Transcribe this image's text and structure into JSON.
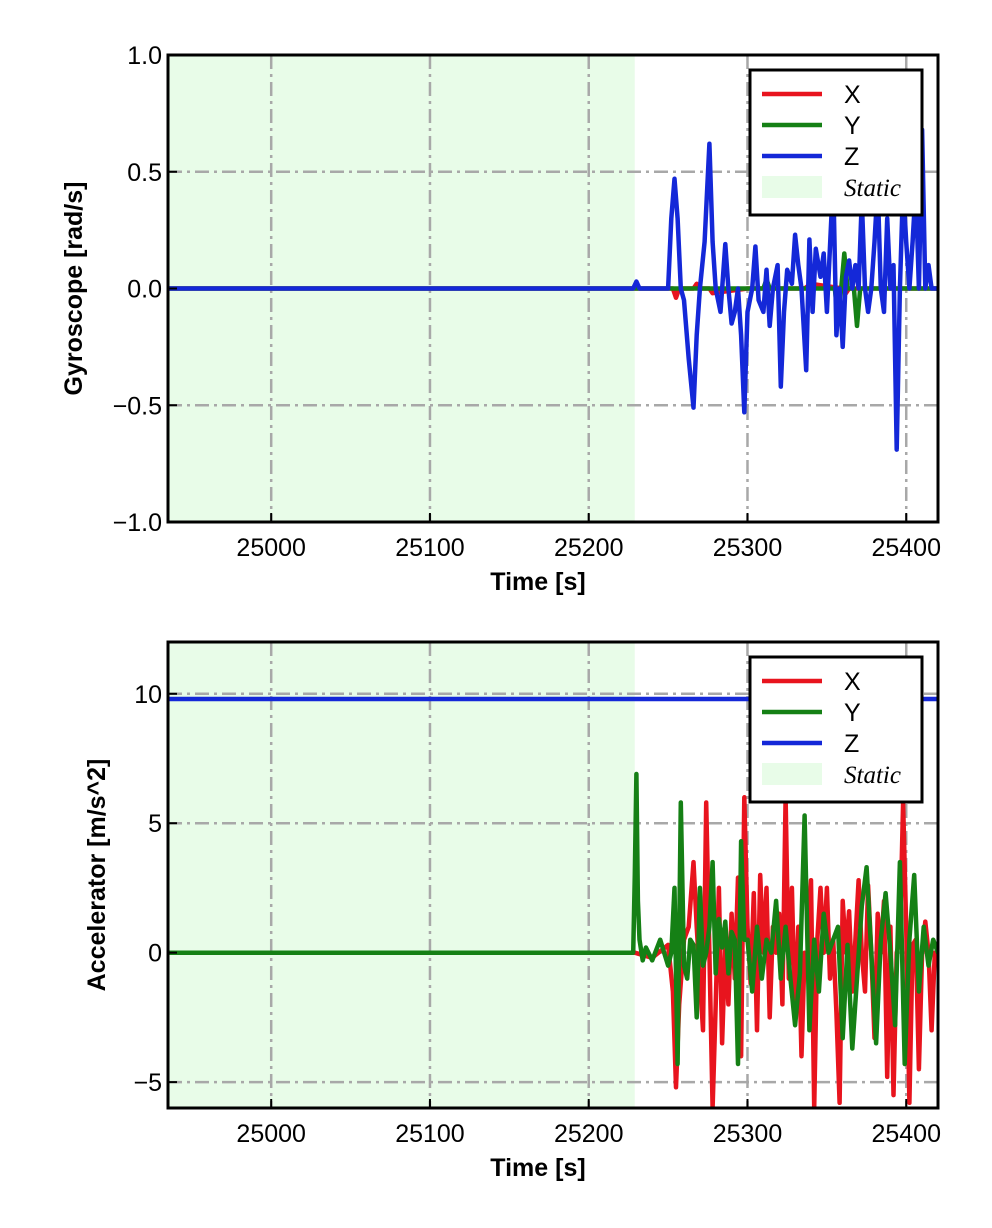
{
  "chart_data": [
    {
      "type": "line",
      "xlabel": "Time [s]",
      "ylabel": "Gyroscope [rad/s]",
      "xlim": [
        24935,
        25420
      ],
      "ylim": [
        -1.0,
        1.0
      ],
      "xticks": [
        25000,
        25100,
        25200,
        25300,
        25400
      ],
      "xtick_labels": [
        "25000",
        "25100",
        "25200",
        "25300",
        "25400"
      ],
      "yticks": [
        1.0,
        0.5,
        0.0,
        -0.5,
        -1.0
      ],
      "ytick_labels": [
        "1.0",
        "0.5",
        "0.0",
        "−0.5",
        "−1.0"
      ],
      "grid": true,
      "legend_position": "top-right",
      "static_region": {
        "label": "Static",
        "x_start": 24935,
        "x_end": 25229,
        "color": "#e8fce8"
      },
      "series": [
        {
          "name": "X",
          "color": "#e8141e",
          "x": [
            24935,
            25229,
            25253,
            25255,
            25257,
            25266,
            25268,
            25270,
            25276,
            25278,
            25300,
            25320,
            25336,
            25340,
            25360,
            25362,
            25364,
            25380,
            25420
          ],
          "y": [
            0,
            0,
            0,
            -0.04,
            0,
            0,
            0.02,
            0,
            0,
            -0.02,
            0,
            0,
            0,
            0.02,
            0,
            -0.02,
            0,
            0,
            0
          ]
        },
        {
          "name": "Y",
          "color": "#158015",
          "x": [
            24935,
            25229,
            25300,
            25310,
            25312,
            25314,
            25355,
            25357,
            25359,
            25361,
            25363,
            25367,
            25369,
            25371,
            25420
          ],
          "y": [
            0,
            0,
            0,
            0,
            0.04,
            0,
            0,
            -0.13,
            0,
            0.15,
            0,
            0,
            -0.16,
            0,
            0
          ]
        },
        {
          "name": "Z",
          "color": "#1428d8",
          "x": [
            24935,
            25228,
            25230,
            25232,
            25250,
            25252,
            25254,
            25256,
            25258,
            25260,
            25263,
            25266,
            25268,
            25270,
            25273,
            25276,
            25278,
            25280,
            25283,
            25286,
            25288,
            25290,
            25292,
            25294,
            25296,
            25298,
            25300,
            25303,
            25305,
            25307,
            25310,
            25312,
            25314,
            25316,
            25319,
            25321,
            25323,
            25325,
            25328,
            25330,
            25332,
            25334,
            25337,
            25339,
            25341,
            25343,
            25346,
            25348,
            25350,
            25352,
            25354,
            25356,
            25358,
            25360,
            25362,
            25364,
            25366,
            25368,
            25370,
            25372,
            25374,
            25376,
            25378,
            25380,
            25382,
            25384,
            25386,
            25388,
            25390,
            25392,
            25394,
            25396,
            25398,
            25400,
            25402,
            25404,
            25406,
            25408,
            25410,
            25412,
            25414,
            25416,
            25420
          ],
          "y": [
            0,
            0,
            0.03,
            0,
            0,
            0.3,
            0.47,
            0.3,
            0,
            -0.05,
            -0.3,
            -0.51,
            -0.2,
            0,
            0.2,
            0.62,
            0.2,
            0,
            -0.1,
            0.19,
            0,
            -0.15,
            -0.1,
            0,
            -0.2,
            -0.53,
            -0.1,
            0,
            0.18,
            -0.05,
            -0.1,
            0.08,
            -0.16,
            0,
            0.1,
            -0.42,
            -0.1,
            0.08,
            0.02,
            0.23,
            0.1,
            0,
            -0.35,
            0.21,
            -0.1,
            0.17,
            0.05,
            0.15,
            -0.1,
            0.18,
            0.47,
            -0.2,
            0,
            -0.25,
            0.05,
            0.12,
            0,
            0.1,
            0,
            0.38,
            0,
            -0.1,
            0,
            0.2,
            0.44,
            0,
            -0.1,
            0.3,
            0,
            0.1,
            -0.69,
            0,
            0.44,
            0.2,
            0,
            0.2,
            0.44,
            0,
            0.68,
            0,
            0.1,
            0,
            0
          ]
        }
      ]
    },
    {
      "type": "line",
      "xlabel": "Time [s]",
      "ylabel": "Accelerator [m/s^2]",
      "xlim": [
        24935,
        25420
      ],
      "ylim": [
        -6.0,
        12.0
      ],
      "xticks": [
        25000,
        25100,
        25200,
        25300,
        25400
      ],
      "xtick_labels": [
        "25000",
        "25100",
        "25200",
        "25300",
        "25400"
      ],
      "yticks": [
        10,
        5,
        0,
        -5
      ],
      "ytick_labels": [
        "10",
        "5",
        "0",
        "−5"
      ],
      "grid": true,
      "legend_position": "top-right",
      "static_region": {
        "label": "Static",
        "x_start": 24935,
        "x_end": 25229,
        "color": "#e8fce8"
      },
      "series": [
        {
          "name": "X",
          "color": "#e8141e",
          "x": [
            24935,
            25229,
            25240,
            25250,
            25253,
            25255,
            25257,
            25260,
            25263,
            25266,
            25268,
            25270,
            25272,
            25274,
            25276,
            25278,
            25280,
            25282,
            25284,
            25286,
            25288,
            25290,
            25292,
            25294,
            25296,
            25298,
            25300,
            25302,
            25304,
            25306,
            25308,
            25310,
            25312,
            25314,
            25316,
            25318,
            25320,
            25322,
            25324,
            25326,
            25328,
            25330,
            25332,
            25334,
            25336,
            25338,
            25340,
            25342,
            25344,
            25346,
            25348,
            25350,
            25352,
            25354,
            25356,
            25358,
            25360,
            25362,
            25364,
            25366,
            25368,
            25370,
            25372,
            25374,
            25376,
            25378,
            25380,
            25382,
            25384,
            25386,
            25388,
            25390,
            25392,
            25394,
            25396,
            25398,
            25400,
            25402,
            25404,
            25406,
            25408,
            25410,
            25412,
            25414,
            25416,
            25418,
            25420
          ],
          "y": [
            0,
            0,
            -0.2,
            0.3,
            -1.5,
            -5.2,
            -2,
            0.5,
            1,
            3.5,
            1,
            -1,
            -3,
            5.8,
            0,
            -6,
            -2,
            2.5,
            -3.5,
            0.3,
            -2,
            1.5,
            -1,
            2.9,
            -4,
            6,
            1,
            -1.2,
            2.3,
            -3,
            3,
            0,
            2.5,
            -2.5,
            1,
            0,
            1.5,
            -2,
            6,
            -1,
            2.5,
            -2.5,
            1,
            -4,
            0,
            -0.5,
            2.8,
            -6,
            0.5,
            2.5,
            0,
            2.5,
            -1,
            0.5,
            -2.3,
            -5.8,
            2,
            0,
            1.6,
            -1.5,
            0.5,
            2.8,
            0,
            -1.5,
            2.6,
            0,
            -3.3,
            1.5,
            0,
            2,
            -4.8,
            1,
            -5.5,
            0,
            0.5,
            5.8,
            1,
            -5.8,
            0.3,
            0.5,
            -4.5,
            0,
            1.2,
            0,
            -3,
            0,
            0
          ]
        },
        {
          "name": "Y",
          "color": "#158015",
          "x": [
            24935,
            25228,
            25229,
            25230,
            25231,
            25232,
            25234,
            25236,
            25240,
            25245,
            25250,
            25252,
            25254,
            25256,
            25258,
            25260,
            25262,
            25264,
            25266,
            25268,
            25270,
            25272,
            25274,
            25276,
            25278,
            25280,
            25282,
            25284,
            25286,
            25288,
            25290,
            25292,
            25294,
            25296,
            25298,
            25300,
            25303,
            25306,
            25309,
            25312,
            25315,
            25318,
            25321,
            25324,
            25327,
            25330,
            25333,
            25336,
            25339,
            25342,
            25345,
            25348,
            25351,
            25354,
            25357,
            25360,
            25363,
            25366,
            25369,
            25372,
            25375,
            25378,
            25381,
            25384,
            25387,
            25390,
            25393,
            25396,
            25399,
            25402,
            25405,
            25408,
            25411,
            25414,
            25417,
            25420
          ],
          "y": [
            0,
            0,
            3,
            6.9,
            2,
            0.5,
            -0.3,
            0.2,
            -0.3,
            0.5,
            -0.5,
            0,
            2.5,
            -4.3,
            5.8,
            -0.5,
            -1,
            0.5,
            0.3,
            -2.5,
            2.5,
            -0.5,
            0,
            1,
            3.5,
            -0.8,
            1.3,
            0.2,
            1.2,
            -0.8,
            0.8,
            0.5,
            -4.3,
            4.3,
            0.5,
            0.5,
            -1.5,
            1,
            -1,
            0.5,
            0,
            2,
            -1,
            1,
            -1,
            -2.8,
            -0.8,
            5.3,
            -3,
            0.5,
            -1.5,
            1.5,
            0,
            0.5,
            1,
            -3.3,
            0.3,
            -3.7,
            -1,
            1.8,
            3.3,
            0,
            -3.5,
            0.5,
            2.3,
            0,
            -2.8,
            3.5,
            -4.3,
            0.5,
            3,
            -1.5,
            1,
            -0.5,
            0.5,
            0
          ]
        },
        {
          "name": "Z",
          "color": "#1428d8",
          "x": [
            24935,
            25420
          ],
          "y": [
            9.8,
            9.8
          ]
        }
      ]
    }
  ]
}
